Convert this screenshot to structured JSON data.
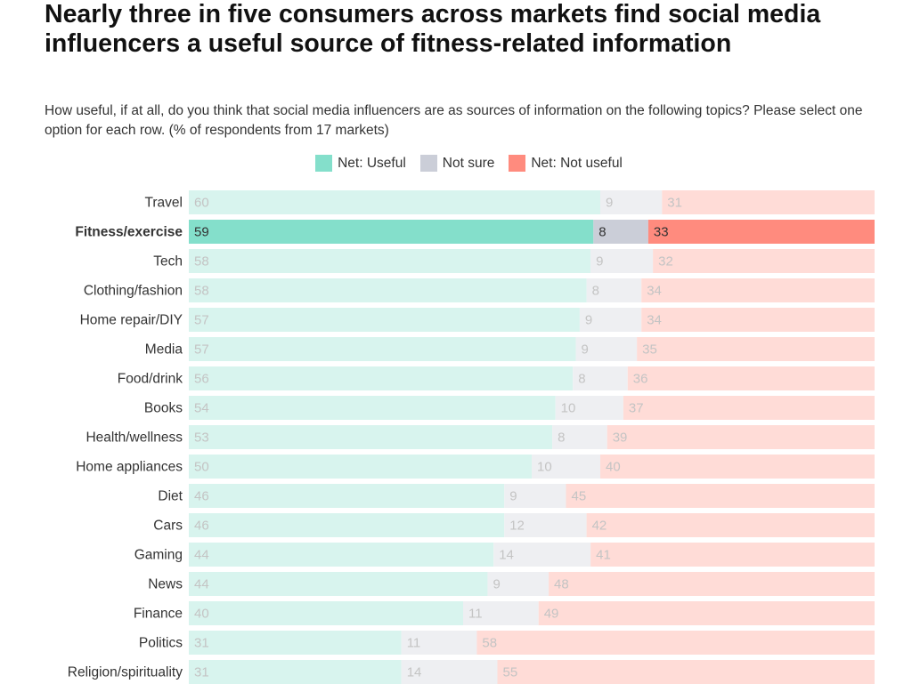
{
  "title": "Nearly three in five consumers across markets find social media influencers a useful source of fitness-related information",
  "subtitle": "How useful, if at all, do you think that social media influencers are as sources of information on the following topics? Please select one option for each row. (% of respondents from 17 markets)",
  "chart_data": {
    "type": "bar",
    "orientation": "horizontal",
    "stacked": true,
    "highlighted_category": "Fitness/exercise",
    "legend_placement": "top",
    "grid": false,
    "categories": [
      "Travel",
      "Fitness/exercise",
      "Tech",
      "Clothing/fashion",
      "Home repair/DIY",
      "Media",
      "Food/drink",
      "Books",
      "Health/wellness",
      "Home appliances",
      "Diet",
      "Cars",
      "Gaming",
      "News",
      "Finance",
      "Politics",
      "Religion/spirituality"
    ],
    "series": [
      {
        "name": "Net: Useful",
        "color": "#84dfcb",
        "faded_color": "#d8f4ee",
        "values": [
          60,
          59,
          58,
          58,
          57,
          57,
          56,
          54,
          53,
          50,
          46,
          46,
          44,
          44,
          40,
          31,
          31
        ]
      },
      {
        "name": "Not sure",
        "color": "#cbced8",
        "faded_color": "#eeeff2",
        "values": [
          9,
          8,
          9,
          8,
          9,
          9,
          8,
          10,
          8,
          10,
          9,
          12,
          14,
          9,
          11,
          11,
          14
        ]
      },
      {
        "name": "Net: Not useful",
        "color": "#ff8b7e",
        "faded_color": "#ffdcd7",
        "values": [
          31,
          33,
          32,
          34,
          34,
          35,
          36,
          37,
          39,
          40,
          45,
          42,
          41,
          48,
          49,
          58,
          55
        ]
      }
    ]
  }
}
